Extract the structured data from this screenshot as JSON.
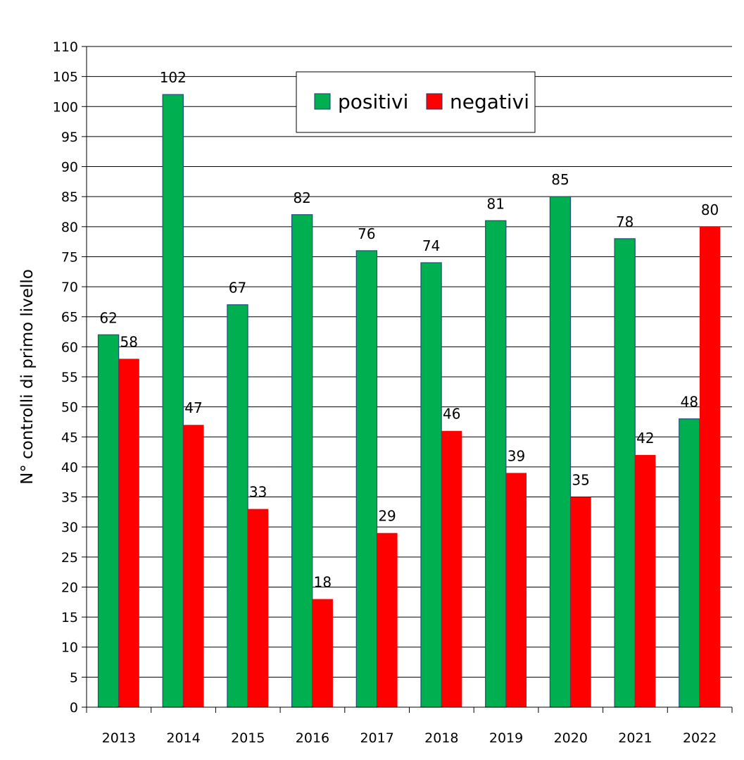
{
  "chart_data": {
    "type": "bar",
    "title": "",
    "xlabel": "",
    "ylabel": "N° controlli di primo livello",
    "categories": [
      "2013",
      "2014",
      "2015",
      "2016",
      "2017",
      "2018",
      "2019",
      "2020",
      "2021",
      "2022"
    ],
    "series": [
      {
        "name": "positivi",
        "color": "#00B050",
        "values": [
          62,
          102,
          67,
          82,
          76,
          74,
          81,
          85,
          78,
          48
        ]
      },
      {
        "name": "negativi",
        "color": "#FF0000",
        "values": [
          58,
          47,
          33,
          18,
          29,
          46,
          39,
          35,
          42,
          80
        ]
      }
    ],
    "ylim": [
      0,
      110
    ],
    "ytick_step": 5,
    "grid": true,
    "legend_position": "top-center",
    "data_labels": true
  }
}
